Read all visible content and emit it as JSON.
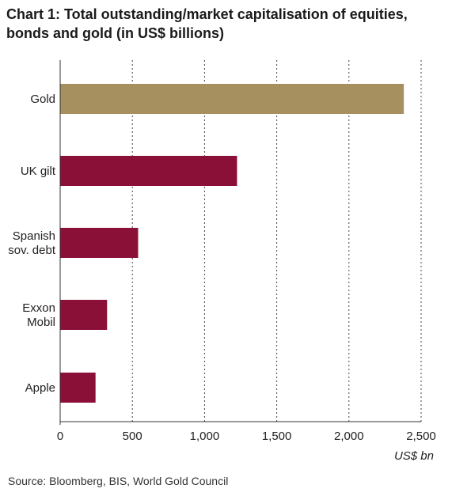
{
  "title_line1": "Chart 1: Total outstanding/market capitalisation of equities,",
  "title_line2": "bonds and gold (in US$ billions)",
  "source": "Source: Bloomberg, BIS, World Gold Council",
  "chart_data": {
    "type": "bar",
    "orientation": "horizontal",
    "categories": [
      [
        "Gold"
      ],
      [
        "UK gilt"
      ],
      [
        "Spanish",
        "sov. debt"
      ],
      [
        "Exxon",
        "Mobil"
      ],
      [
        "Apple"
      ]
    ],
    "values": [
      2380,
      1225,
      540,
      325,
      245
    ],
    "colors": [
      "#a69060",
      "#8a1038",
      "#8a1038",
      "#8a1038",
      "#8a1038"
    ],
    "xlim": [
      0,
      2500
    ],
    "xticks": [
      0,
      500,
      1000,
      1500,
      2000,
      2500
    ],
    "xtick_labels": [
      "0",
      "500",
      "1,000",
      "1,500",
      "2,000",
      "2,500"
    ],
    "xlabel": "US$ bn",
    "grid": "vertical dotted"
  }
}
